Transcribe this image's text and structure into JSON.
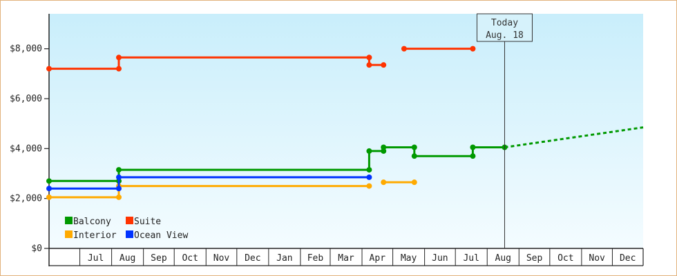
{
  "chart_data": {
    "type": "line",
    "title": "",
    "xlabel": "",
    "ylabel": "",
    "y_ticks": [
      "$0",
      "$2,000",
      "$4,000",
      "$6,000",
      "$8,000"
    ],
    "ylim": [
      0,
      9400
    ],
    "x_tick_labels": [
      "Jul",
      "Aug",
      "Sep",
      "Oct",
      "Nov",
      "Dec",
      "Jan",
      "Feb",
      "Mar",
      "Apr",
      "May",
      "Jun",
      "Jul",
      "Aug",
      "Sep",
      "Oct",
      "Nov",
      "Dec"
    ],
    "xlim": [
      "2023-06-01",
      "2024-12-31"
    ],
    "today_line": {
      "date": "2024-08-18",
      "line1": "Today",
      "line2": "Aug. 18"
    },
    "legend_position": "bottom-left",
    "series": [
      {
        "name": "Balcony",
        "color": "#009900",
        "segments": [
          [
            [
              "2023-06-01",
              2700
            ],
            [
              "2023-08-08",
              2700
            ],
            [
              "2023-08-08",
              3150
            ],
            [
              "2024-04-08",
              3150
            ],
            [
              "2024-04-08",
              3900
            ],
            [
              "2024-04-22",
              3900
            ],
            [
              "2024-04-22",
              4050
            ],
            [
              "2024-05-22",
              4050
            ],
            [
              "2024-05-22",
              3700
            ],
            [
              "2024-07-18",
              3700
            ],
            [
              "2024-07-18",
              4050
            ],
            [
              "2024-08-18",
              4050
            ]
          ]
        ],
        "markers": [
          [
            "2023-06-01",
            2700
          ],
          [
            "2023-08-08",
            2700
          ],
          [
            "2023-08-08",
            3150
          ],
          [
            "2024-04-08",
            3150
          ],
          [
            "2024-04-08",
            3900
          ],
          [
            "2024-04-22",
            3900
          ],
          [
            "2024-04-22",
            4050
          ],
          [
            "2024-05-22",
            4050
          ],
          [
            "2024-05-22",
            3700
          ],
          [
            "2024-07-18",
            3700
          ],
          [
            "2024-07-18",
            4050
          ],
          [
            "2024-08-18",
            4050
          ]
        ],
        "projection": [
          [
            "2024-08-18",
            4050
          ],
          [
            "2024-12-31",
            4850
          ]
        ]
      },
      {
        "name": "Suite",
        "color": "#ff3300",
        "segments": [
          [
            [
              "2023-06-01",
              7200
            ],
            [
              "2023-08-08",
              7200
            ],
            [
              "2023-08-08",
              7650
            ],
            [
              "2024-04-08",
              7650
            ],
            [
              "2024-04-08",
              7350
            ],
            [
              "2024-04-22",
              7350
            ]
          ],
          [
            [
              "2024-05-12",
              8000
            ],
            [
              "2024-07-18",
              8000
            ]
          ]
        ],
        "markers": [
          [
            "2023-06-01",
            7200
          ],
          [
            "2023-08-08",
            7200
          ],
          [
            "2023-08-08",
            7650
          ],
          [
            "2024-04-08",
            7650
          ],
          [
            "2024-04-08",
            7350
          ],
          [
            "2024-04-22",
            7350
          ],
          [
            "2024-05-12",
            8000
          ],
          [
            "2024-07-18",
            8000
          ]
        ]
      },
      {
        "name": "Interior",
        "color": "#ffaa00",
        "segments": [
          [
            [
              "2023-06-01",
              2050
            ],
            [
              "2023-08-08",
              2050
            ],
            [
              "2023-08-08",
              2500
            ],
            [
              "2024-04-08",
              2500
            ]
          ],
          [
            [
              "2024-04-22",
              2650
            ],
            [
              "2024-05-22",
              2650
            ]
          ]
        ],
        "markers": [
          [
            "2023-06-01",
            2050
          ],
          [
            "2023-08-08",
            2050
          ],
          [
            "2023-08-08",
            2500
          ],
          [
            "2024-04-08",
            2500
          ],
          [
            "2024-04-22",
            2650
          ],
          [
            "2024-05-22",
            2650
          ]
        ]
      },
      {
        "name": "Ocean View",
        "color": "#0033ff",
        "segments": [
          [
            [
              "2023-06-01",
              2400
            ],
            [
              "2023-08-08",
              2400
            ],
            [
              "2023-08-08",
              2850
            ],
            [
              "2024-04-08",
              2850
            ]
          ]
        ],
        "markers": [
          [
            "2023-06-01",
            2400
          ],
          [
            "2023-08-08",
            2400
          ],
          [
            "2023-08-08",
            2850
          ],
          [
            "2024-04-08",
            2850
          ]
        ]
      }
    ],
    "legend": [
      {
        "name": "Balcony",
        "color": "#009900"
      },
      {
        "name": "Suite",
        "color": "#ff3300"
      },
      {
        "name": "Interior",
        "color": "#ffaa00"
      },
      {
        "name": "Ocean View",
        "color": "#0033ff"
      }
    ]
  }
}
